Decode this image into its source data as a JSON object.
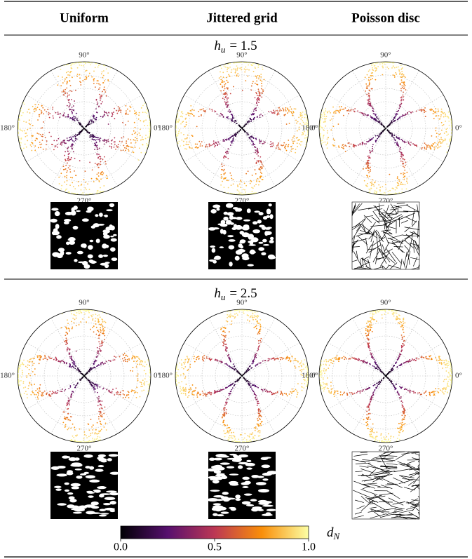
{
  "columns": [
    "Uniform",
    "Jittered grid",
    "Poisson disc"
  ],
  "rows": [
    {
      "label": {
        "symbol": "h",
        "subscript": "u",
        "text": "= 1.5"
      }
    },
    {
      "label": {
        "symbol": "h",
        "subscript": "u",
        "text": "= 2.5"
      }
    }
  ],
  "polar_angle_labels": [
    "0°",
    "90°",
    "180°",
    "270°"
  ],
  "colorbar": {
    "label": {
      "symbol": "d",
      "subscript": "N"
    },
    "lim": [
      0,
      1
    ],
    "ticks": [
      {
        "value": 0,
        "label": "0.0"
      },
      {
        "value": 0.5,
        "label": "0.5"
      },
      {
        "value": 1,
        "label": "1.0"
      }
    ]
  }
}
